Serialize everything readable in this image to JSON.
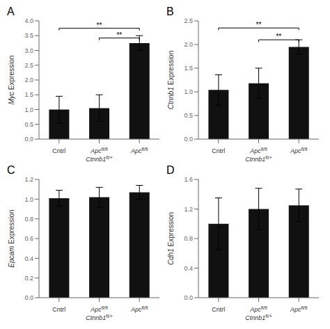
{
  "chart_data": [
    {
      "type": "bar",
      "title": "A",
      "ylabel": "Myc Expression",
      "color": "#111111",
      "categories": [
        "Cntrl",
        "Apc fl/fl\nCtnnb1 fl/+",
        "Apc fl/fl"
      ],
      "values": [
        1.0,
        1.05,
        3.25
      ],
      "errors": [
        0.45,
        0.45,
        0.25
      ],
      "ylim": [
        0,
        4
      ],
      "yticks": [
        {
          "value": 0,
          "label": "0.0"
        },
        0.5,
        {
          "value": 1.0,
          "label": "1.0"
        },
        1.5,
        {
          "value": 2.0,
          "label": "2.0"
        },
        2.5,
        {
          "value": 3.0,
          "label": "3.0"
        },
        3.5,
        {
          "value": 4.0,
          "label": "4.0"
        }
      ],
      "annotations": [
        {
          "text": "**",
          "from": 0,
          "to": 2,
          "y": 3.75
        },
        {
          "text": "**",
          "from": 1,
          "to": 2,
          "y": 3.42
        }
      ]
    },
    {
      "type": "bar",
      "title": "B",
      "ylabel": "Ctnnb1 Expression",
      "color": "#111111",
      "categories": [
        "Cntrl",
        "Apc fl/fl\nCtnnb1 fl/+",
        "Apc fl/fl"
      ],
      "values": [
        1.04,
        1.18,
        1.95
      ],
      "errors": [
        0.32,
        0.32,
        0.15
      ],
      "ylim": [
        0,
        2.5
      ],
      "yticks": [
        {
          "value": 0,
          "label": "0.0"
        },
        0.5,
        {
          "value": 1.0,
          "label": "1.0"
        },
        1.5,
        {
          "value": 2.0,
          "label": "2.0"
        },
        2.5
      ],
      "annotations": [
        {
          "text": "**",
          "from": 0,
          "to": 2,
          "y": 2.35
        },
        {
          "text": "**",
          "from": 1,
          "to": 2,
          "y": 2.1
        }
      ]
    },
    {
      "type": "bar",
      "title": "C",
      "ylabel": "Epcam Expression",
      "color": "#111111",
      "categories": [
        "Cntrl",
        "Apc fl/fl\nCtnnb1 fl/+",
        "Apc fl/fl"
      ],
      "values": [
        1.01,
        1.02,
        1.07
      ],
      "errors": [
        0.08,
        0.1,
        0.07
      ],
      "ylim": [
        0,
        1.2
      ],
      "yticks": [
        {
          "value": 0,
          "label": "0.0"
        },
        0.2,
        0.4,
        0.6,
        0.8,
        {
          "value": 1.0,
          "label": "1.0"
        },
        1.2
      ],
      "annotations": []
    },
    {
      "type": "bar",
      "title": "D",
      "ylabel": "Cdh1 Expression",
      "color": "#111111",
      "categories": [
        "Cntrl",
        "Apc fl/fl\nCtnnb1 fl/+",
        "Apc fl/fl"
      ],
      "values": [
        1.0,
        1.2,
        1.25
      ],
      "errors": [
        0.35,
        0.28,
        0.22
      ],
      "ylim": [
        0,
        1.6
      ],
      "yticks": [
        {
          "value": 0,
          "label": "0.0"
        },
        0.4,
        0.8,
        1.2,
        1.6
      ],
      "annotations": []
    }
  ]
}
